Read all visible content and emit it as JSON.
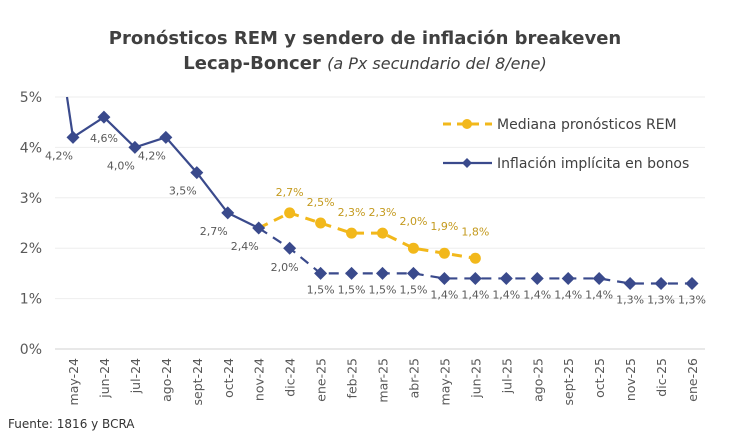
{
  "chart_data": {
    "type": "line",
    "title": "Pronósticos REM y sendero de inflación breakeven",
    "title_line2": "Lecap-Boncer",
    "subtitle": "(a Px secundario del 8/ene)",
    "categories": [
      "may-24",
      "jun-24",
      "jul-24",
      "ago-24",
      "sept-24",
      "oct-24",
      "nov-24",
      "dic-24",
      "ene-25",
      "feb-25",
      "mar-25",
      "abr-25",
      "may-25",
      "jun-25",
      "jul-25",
      "ago-25",
      "sept-25",
      "oct-25",
      "nov-25",
      "dic-25",
      "ene-26"
    ],
    "ylim": [
      0,
      5
    ],
    "yticks": [
      "0%",
      "1%",
      "2%",
      "3%",
      "4%",
      "5%"
    ],
    "grid": true,
    "legend_position": "top-right",
    "series": [
      {
        "name": "Mediana pronósticos REM",
        "color": "#F2B81B",
        "style": "dashed",
        "marker": "circle",
        "values": [
          null,
          null,
          null,
          null,
          null,
          null,
          2.4,
          2.7,
          2.5,
          2.3,
          2.3,
          2.0,
          1.9,
          1.8,
          null,
          null,
          null,
          null,
          null,
          null,
          null
        ],
        "labels": [
          null,
          null,
          null,
          null,
          null,
          null,
          null,
          "2,7%",
          "2,5%",
          "2,3%",
          "2,3%",
          "2,0%",
          "1,9%",
          "1,8%",
          null,
          null,
          null,
          null,
          null,
          null,
          null
        ]
      },
      {
        "name": "Inflación implícita en bonos",
        "color": "#3A4A8C",
        "style": "solid-then-dashed",
        "solid_until": "nov-24",
        "marker": "diamond",
        "values": [
          4.2,
          4.6,
          4.0,
          4.2,
          3.5,
          2.7,
          2.4,
          2.0,
          1.5,
          1.5,
          1.5,
          1.5,
          1.4,
          1.4,
          1.4,
          1.4,
          1.4,
          1.4,
          1.3,
          1.3,
          1.3
        ],
        "labels": [
          "4,2%",
          "4,6%",
          "4,0%",
          "4,2%",
          "3,5%",
          "2,7%",
          "2,4%",
          "2,0%",
          "1,5%",
          "1,5%",
          "1,5%",
          "1,5%",
          "1,4%",
          "1,4%",
          "1,4%",
          "1,4%",
          "1,4%",
          "1,4%",
          "1,3%",
          "1,3%",
          "1,3%"
        ]
      }
    ],
    "source": "Fuente: 1816 y BCRA"
  }
}
